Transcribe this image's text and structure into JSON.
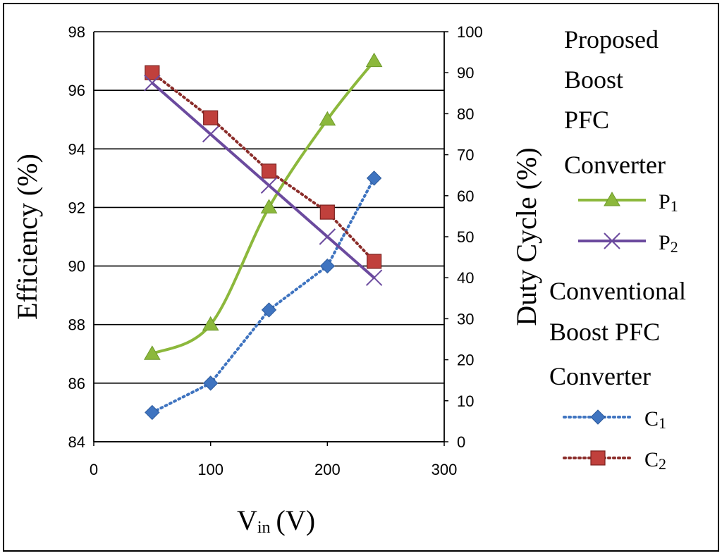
{
  "chart_data": {
    "type": "line",
    "title": "",
    "xlabel": {
      "main": "V",
      "sub": "in",
      "unit": "(V)"
    },
    "ylabel": "Efficiency (%)",
    "y2label": "Duty Cycle (%)",
    "xlim": [
      0,
      300
    ],
    "ylim": [
      84,
      98
    ],
    "y2lim": [
      0,
      100
    ],
    "xticks": [
      "0",
      "100",
      "200",
      "300"
    ],
    "yticks": [
      "84",
      "86",
      "88",
      "90",
      "92",
      "94",
      "96",
      "98"
    ],
    "y2ticks": [
      "0",
      "10",
      "20",
      "30",
      "40",
      "50",
      "60",
      "70",
      "80",
      "90",
      "100"
    ],
    "grid": "horizontal",
    "legend_groups": [
      {
        "heading": [
          "Proposed",
          "Boost",
          "PFC",
          "Converter"
        ],
        "series": [
          "P1",
          "P2"
        ]
      },
      {
        "heading": [
          "Conventional",
          "Boost PFC",
          "Converter"
        ],
        "series": [
          "C1",
          "C2"
        ]
      }
    ],
    "series": [
      {
        "key": "P1",
        "name": "P",
        "sub": "1",
        "axis": "left",
        "marker": "triangle",
        "style": "solid",
        "smooth": true,
        "color": "#8cb83c",
        "x": [
          50,
          100,
          150,
          200,
          240
        ],
        "y": [
          87,
          88,
          92,
          95,
          97
        ]
      },
      {
        "key": "P2",
        "name": "P",
        "sub": "2",
        "axis": "right",
        "marker": "x",
        "style": "solid",
        "smooth": false,
        "color": "#6b4a9e",
        "x": [
          50,
          100,
          150,
          200,
          240
        ],
        "y": [
          87.5,
          75,
          62.5,
          50,
          40
        ]
      },
      {
        "key": "C1",
        "name": "C",
        "sub": "1",
        "axis": "left",
        "marker": "diamond",
        "style": "dotted",
        "smooth": false,
        "color": "#3f74c0",
        "x": [
          50,
          100,
          150,
          200,
          240
        ],
        "y": [
          85,
          86,
          88.5,
          90,
          93
        ]
      },
      {
        "key": "C2",
        "name": "C",
        "sub": "2",
        "axis": "right",
        "marker": "square",
        "style": "dotted",
        "smooth": false,
        "color": "#c0403c",
        "line_color": "#8b2d2a",
        "x": [
          50,
          100,
          150,
          200,
          240
        ],
        "y": [
          90,
          79,
          66,
          56,
          44
        ]
      }
    ]
  }
}
